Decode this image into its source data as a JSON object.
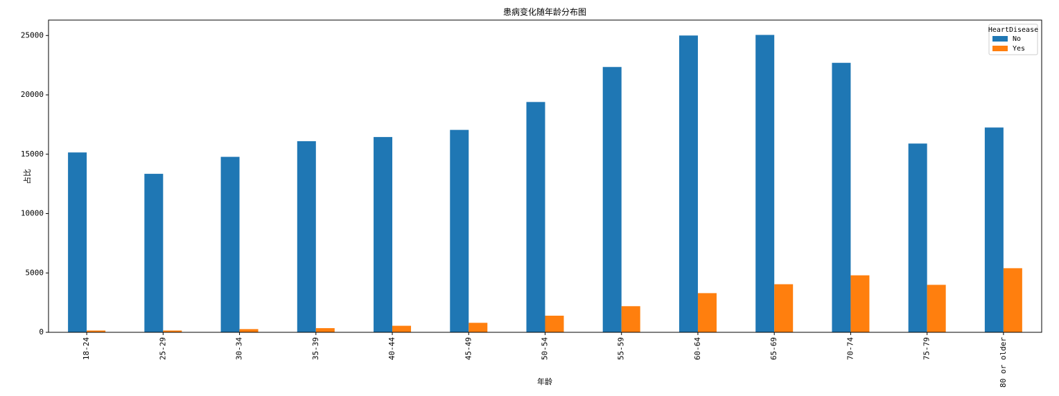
{
  "chart_data": {
    "type": "bar",
    "title": "患病变化随年龄分布图",
    "x_label": "年龄",
    "y_label": "占比",
    "categories": [
      "18-24",
      "25-29",
      "30-34",
      "35-39",
      "40-44",
      "45-49",
      "50-54",
      "55-59",
      "60-64",
      "65-69",
      "70-74",
      "75-79",
      "80 or older"
    ],
    "series": [
      {
        "name": "No",
        "color": "#1f77b4",
        "values": [
          15150,
          13350,
          14780,
          16100,
          16450,
          17050,
          19400,
          22350,
          25000,
          25050,
          22700,
          15900,
          17250
        ]
      },
      {
        "name": "Yes",
        "color": "#ff7f0e",
        "values": [
          150,
          150,
          270,
          350,
          550,
          800,
          1400,
          2200,
          3300,
          4050,
          4800,
          4000,
          5400
        ]
      }
    ],
    "ylim": [
      0,
      26300
    ],
    "yticks": [
      0,
      5000,
      10000,
      15000,
      20000,
      25000
    ],
    "legend_title": "HeartDisease",
    "legend": "upper right",
    "grid": false
  }
}
